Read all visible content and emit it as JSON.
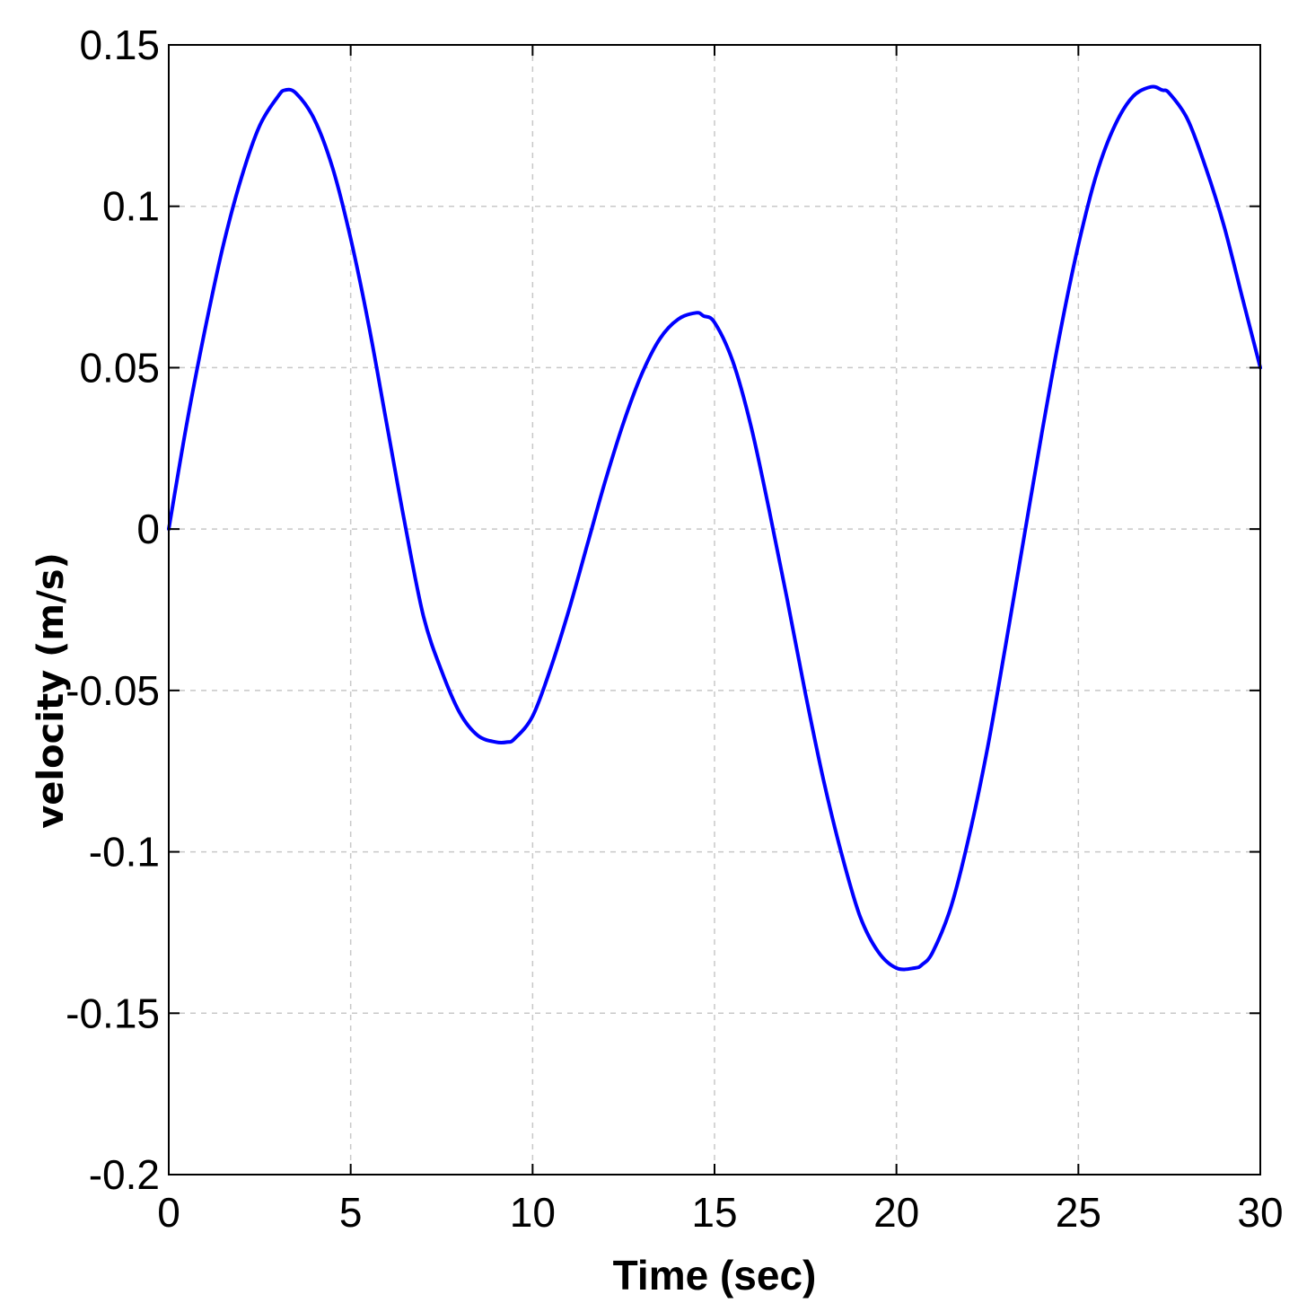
{
  "chart_data": {
    "type": "line",
    "title": "",
    "xlabel": "Time (sec)",
    "ylabel": "velocity (m/s)",
    "xlim": [
      0,
      30
    ],
    "ylim": [
      -0.2,
      0.15
    ],
    "xticks": [
      0,
      5,
      10,
      15,
      20,
      25,
      30
    ],
    "xtick_labels": [
      "0",
      "5",
      "10",
      "15",
      "20",
      "25",
      "30"
    ],
    "yticks": [
      0.15,
      0.1,
      0.05,
      0,
      -0.05,
      -0.1,
      -0.15,
      -0.2
    ],
    "ytick_labels": [
      "0.15",
      "0.1",
      "0.05",
      "0",
      "-0.05",
      "-0.1",
      "-0.15",
      "-0.2"
    ],
    "grid": true,
    "series": [
      {
        "color": "#0000ff",
        "x": [
          0,
          0.5,
          1,
          1.5,
          2,
          2.5,
          3,
          3.2,
          3.5,
          4,
          4.5,
          5,
          5.5,
          6,
          6.5,
          7,
          7.5,
          8,
          8.5,
          9,
          9.3,
          9.5,
          10,
          10.5,
          11,
          11.5,
          12,
          12.5,
          13,
          13.5,
          14,
          14.5,
          14.7,
          15,
          15.5,
          16,
          16.5,
          17,
          17.5,
          18,
          18.5,
          19,
          19.5,
          20,
          20.5,
          20.7,
          21,
          21.5,
          22,
          22.5,
          23,
          23.5,
          24,
          24.5,
          25,
          25.5,
          26,
          26.5,
          27,
          27.3,
          27.5,
          28,
          28.5,
          29,
          29.5,
          30
        ],
        "y": [
          0,
          0.033,
          0.062,
          0.088,
          0.109,
          0.125,
          0.134,
          0.136,
          0.135,
          0.127,
          0.112,
          0.09,
          0.063,
          0.032,
          0.001,
          -0.027,
          -0.044,
          -0.057,
          -0.064,
          -0.066,
          -0.066,
          -0.065,
          -0.058,
          -0.043,
          -0.025,
          -0.005,
          0.015,
          0.033,
          0.048,
          0.059,
          0.065,
          0.067,
          0.066,
          0.064,
          0.052,
          0.032,
          0.006,
          -0.022,
          -0.051,
          -0.078,
          -0.101,
          -0.12,
          -0.131,
          -0.136,
          -0.136,
          -0.135,
          -0.131,
          -0.117,
          -0.095,
          -0.068,
          -0.036,
          -0.003,
          0.03,
          0.061,
          0.088,
          0.11,
          0.125,
          0.134,
          0.137,
          0.136,
          0.135,
          0.127,
          0.112,
          0.094,
          0.072,
          0.05
        ]
      }
    ]
  }
}
